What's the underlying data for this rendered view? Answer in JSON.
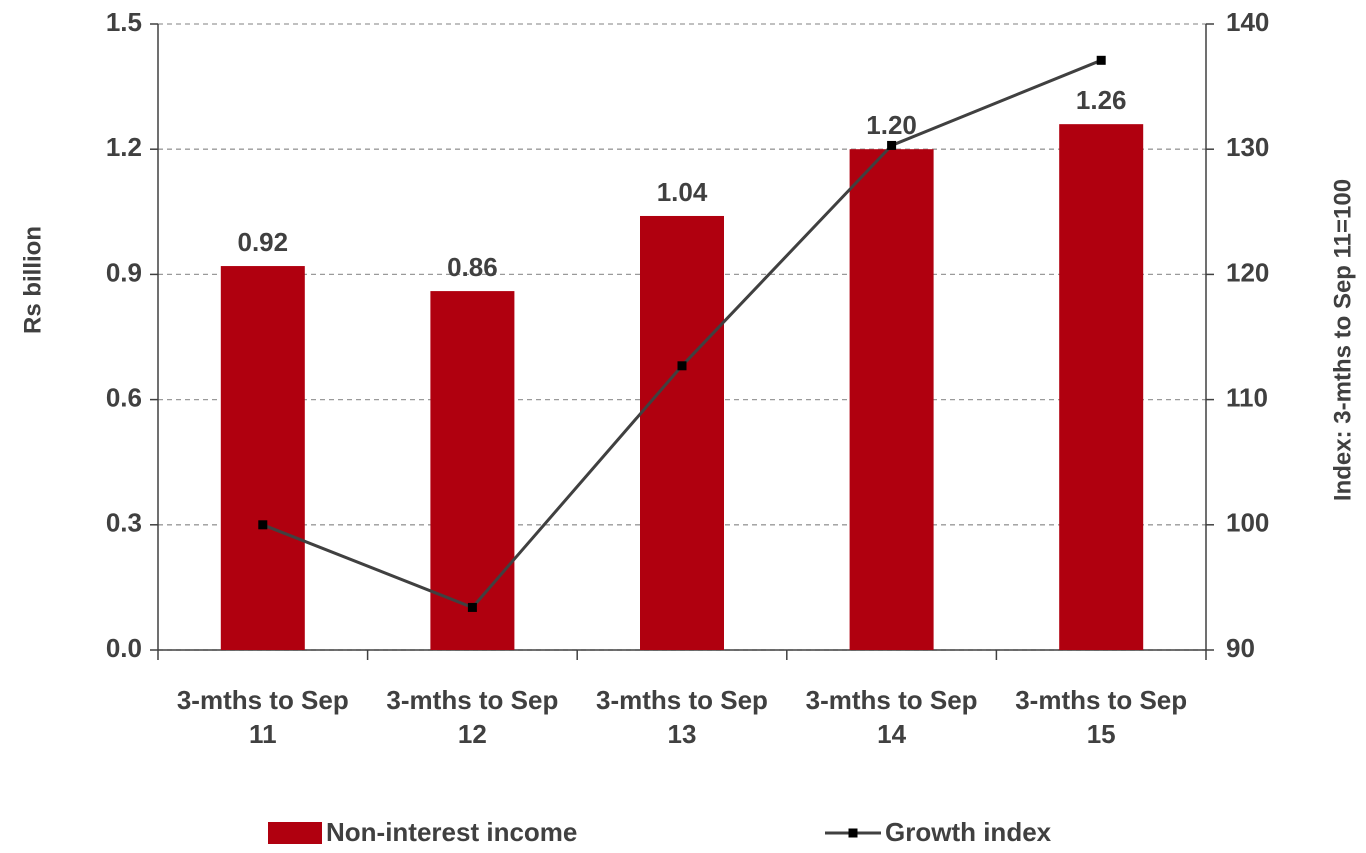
{
  "chart_data": {
    "type": "bar",
    "categories": [
      "3-mths to Sep 11",
      "3-mths to Sep 12",
      "3-mths to Sep 13",
      "3-mths to Sep 14",
      "3-mths to Sep 15"
    ],
    "ylabel": "Rs billion",
    "y2label": "Index: 3-mths to Sep 11=100",
    "ylim": [
      0,
      1.5
    ],
    "yticks": [
      {
        "value": 0,
        "label": "0.0"
      },
      0.3,
      0.6,
      0.9,
      1.2,
      1.5
    ],
    "y2lim": [
      90,
      140
    ],
    "y2ticks": [
      90,
      100,
      110,
      120,
      130,
      140
    ],
    "grid": true,
    "series": [
      {
        "name": "Non-interest income",
        "type": "bar",
        "color": "#b0000f",
        "values": [
          0.92,
          0.86,
          1.04,
          1.2,
          1.26
        ],
        "value_labels": [
          "0.92",
          "0.86",
          "1.04",
          "1.20",
          "1.26"
        ]
      },
      {
        "name": "Growth index",
        "type": "line",
        "axis": "y2",
        "color": "#404040",
        "values": [
          100,
          93.4,
          112.7,
          130.3,
          137.1
        ]
      }
    ]
  }
}
